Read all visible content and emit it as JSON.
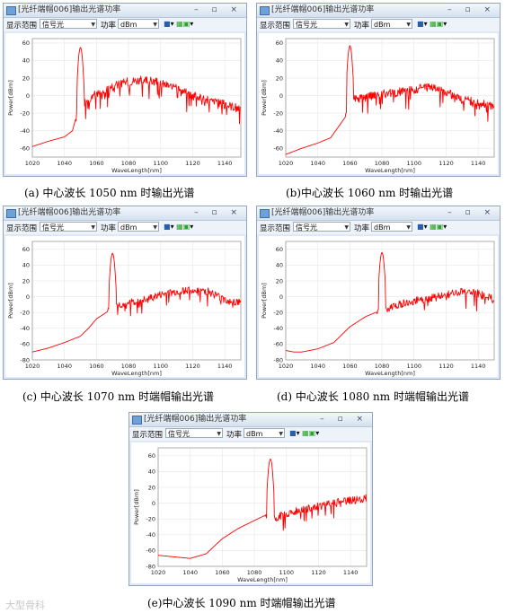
{
  "window": {
    "title": "[光纤端帽006]输出光谱功率",
    "range_label": "显示范围",
    "range_value": "信号光",
    "power_label": "功率",
    "power_value": "dBm",
    "controls": "–  ▫  ×"
  },
  "axes": {
    "xlabel": "WaveLength[nm]",
    "ylabel": "Power[dBm]",
    "xlim": [
      1020,
      1150
    ],
    "ylim": [
      -80,
      70
    ],
    "xticks": [
      1020,
      1040,
      1060,
      1080,
      1100,
      1120,
      1140
    ],
    "yticks": [
      -80,
      -60,
      -40,
      -20,
      0,
      20,
      40,
      60
    ],
    "grid": true,
    "line_color": "#ff0000"
  },
  "captions": {
    "a": "(a)  中心波长 1050 nm 时输出光谱",
    "b": "(b)中心波长 1060 nm 时输出光谱",
    "c": "(c)  中心波长 1070 nm 时端帽输出光谱",
    "d": "(d)  中心波长 1080 nm 时端帽输出光谱",
    "e": "(e)中心波长 1090 nm 时端帽输出光谱"
  },
  "watermark": "大型骨科",
  "chart_data": [
    {
      "type": "line",
      "xlabel": "WaveLength[nm]",
      "ylabel": "Power[dBm]",
      "xlim": [
        1020,
        1150
      ],
      "ylim": [
        -70,
        65
      ],
      "yticks": [
        -60,
        -40,
        -20,
        0,
        20,
        40,
        60
      ],
      "peak": {
        "x": 1050,
        "y": 55
      },
      "series": [
        {
          "x": [
            1020,
            1030,
            1040,
            1045,
            1048,
            1052,
            1060,
            1070,
            1080,
            1090,
            1100,
            1110,
            1120,
            1130,
            1140,
            1150
          ],
          "y": [
            -58,
            -52,
            -47,
            -40,
            -20,
            -10,
            2,
            10,
            16,
            18,
            14,
            8,
            0,
            -6,
            -10,
            -15
          ]
        }
      ]
    },
    {
      "type": "line",
      "xlabel": "WaveLength[nm]",
      "ylabel": "Power[dBm]",
      "xlim": [
        1020,
        1150
      ],
      "ylim": [
        -70,
        65
      ],
      "yticks": [
        -60,
        -40,
        -20,
        0,
        20,
        40,
        60
      ],
      "peak": {
        "x": 1060,
        "y": 57
      },
      "series": [
        {
          "x": [
            1020,
            1030,
            1040,
            1048,
            1055,
            1058,
            1062,
            1070,
            1080,
            1090,
            1100,
            1110,
            1120,
            1130,
            1140,
            1150
          ],
          "y": [
            -67,
            -60,
            -54,
            -48,
            -30,
            -22,
            -5,
            -2,
            2,
            4,
            7,
            10,
            4,
            -4,
            -8,
            -12
          ]
        }
      ]
    },
    {
      "type": "line",
      "xlabel": "WaveLength[nm]",
      "ylabel": "Power[dBm]",
      "xlim": [
        1020,
        1150
      ],
      "ylim": [
        -80,
        70
      ],
      "yticks": [
        -80,
        -60,
        -40,
        -20,
        0,
        20,
        40,
        60
      ],
      "peak": {
        "x": 1070,
        "y": 55
      },
      "series": [
        {
          "x": [
            1020,
            1030,
            1040,
            1050,
            1055,
            1060,
            1066,
            1072,
            1080,
            1090,
            1100,
            1110,
            1120,
            1130,
            1140,
            1150
          ],
          "y": [
            -70,
            -65,
            -58,
            -50,
            -40,
            -28,
            -20,
            -12,
            -8,
            -4,
            2,
            6,
            10,
            6,
            -4,
            -8
          ]
        }
      ]
    },
    {
      "type": "line",
      "xlabel": "WaveLength[nm]",
      "ylabel": "Power[dBm]",
      "xlim": [
        1020,
        1150
      ],
      "ylim": [
        -80,
        70
      ],
      "yticks": [
        -80,
        -60,
        -40,
        -20,
        0,
        20,
        40,
        60
      ],
      "peak": {
        "x": 1080,
        "y": 56
      },
      "series": [
        {
          "x": [
            1020,
            1025,
            1030,
            1040,
            1050,
            1060,
            1070,
            1076,
            1084,
            1090,
            1100,
            1110,
            1120,
            1130,
            1140,
            1150
          ],
          "y": [
            -68,
            -70,
            -70,
            -66,
            -58,
            -38,
            -25,
            -20,
            -15,
            -10,
            -6,
            -2,
            2,
            6,
            4,
            -4
          ]
        }
      ]
    },
    {
      "type": "line",
      "xlabel": "WaveLength[nm]",
      "ylabel": "Power[dBm]",
      "xlim": [
        1020,
        1150
      ],
      "ylim": [
        -80,
        70
      ],
      "yticks": [
        -80,
        -60,
        -40,
        -20,
        0,
        20,
        40,
        60
      ],
      "peak": {
        "x": 1090,
        "y": 56
      },
      "series": [
        {
          "x": [
            1020,
            1030,
            1040,
            1050,
            1060,
            1070,
            1080,
            1086,
            1094,
            1100,
            1110,
            1120,
            1130,
            1140,
            1150
          ],
          "y": [
            -66,
            -68,
            -70,
            -64,
            -45,
            -32,
            -22,
            -16,
            -18,
            -14,
            -8,
            -4,
            0,
            4,
            6
          ]
        }
      ]
    }
  ]
}
